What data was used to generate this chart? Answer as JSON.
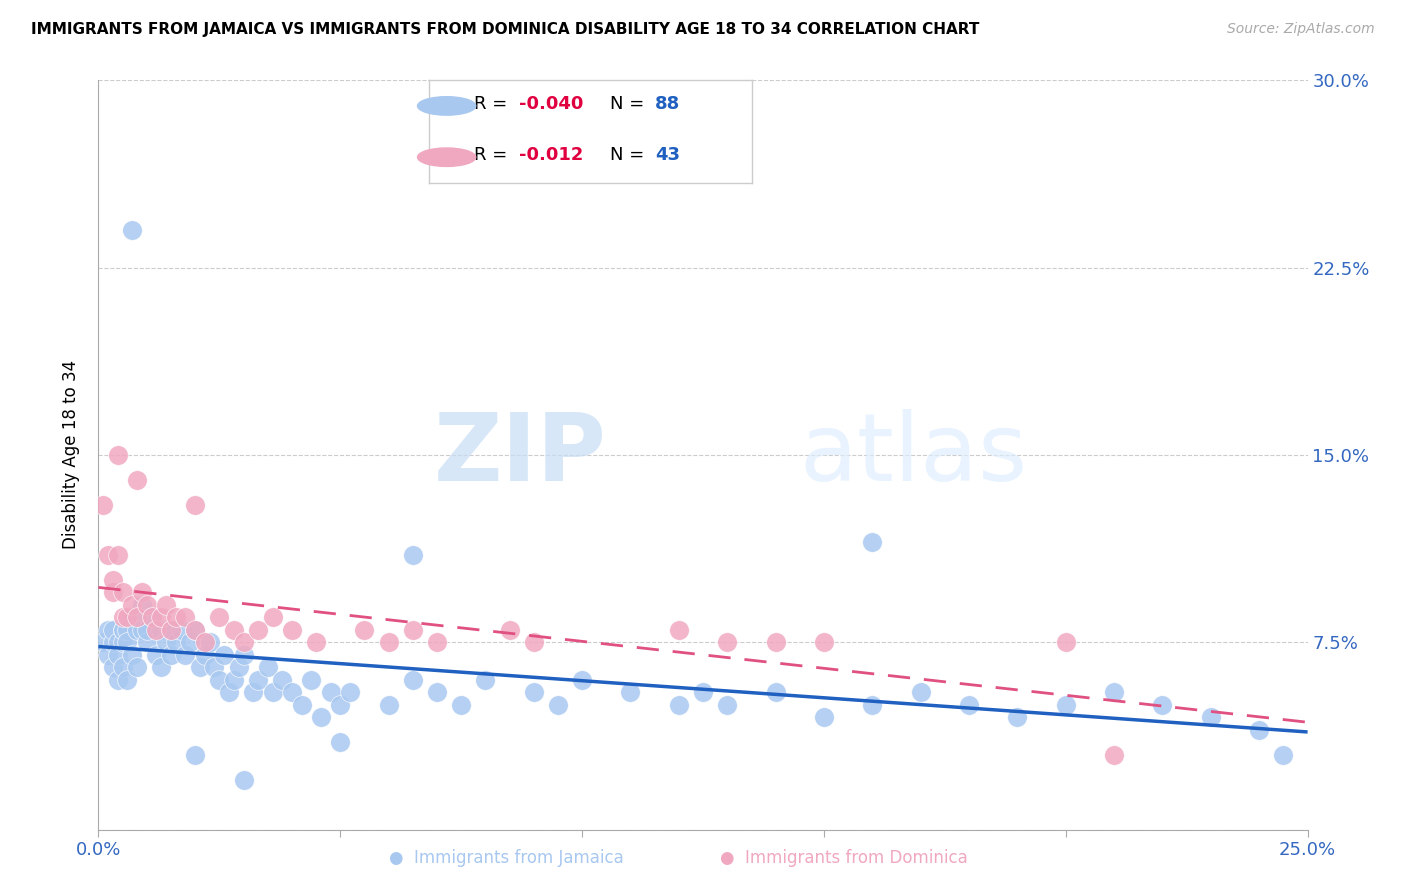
{
  "title": "IMMIGRANTS FROM JAMAICA VS IMMIGRANTS FROM DOMINICA DISABILITY AGE 18 TO 34 CORRELATION CHART",
  "source": "Source: ZipAtlas.com",
  "ylabel": "Disability Age 18 to 34",
  "xlim": [
    0.0,
    0.25
  ],
  "ylim": [
    0.0,
    0.3
  ],
  "ytick_vals": [
    0.0,
    0.075,
    0.15,
    0.225,
    0.3
  ],
  "ytick_labels_right": [
    "",
    "7.5%",
    "15.0%",
    "22.5%",
    "30.0%"
  ],
  "xtick_vals": [
    0.0,
    0.05,
    0.1,
    0.15,
    0.2,
    0.25
  ],
  "xtick_labels": [
    "0.0%",
    "",
    "",
    "",
    "",
    "25.0%"
  ],
  "jamaica_R": -0.04,
  "jamaica_N": 88,
  "dominica_R": -0.012,
  "dominica_N": 43,
  "jamaica_color": "#a8c8f0",
  "dominica_color": "#f0a8c0",
  "jamaica_line_color": "#2060c0",
  "dominica_line_color": "#e05080",
  "legend_R_color": "#e00040",
  "legend_N_color": "#2060c0",
  "watermark_zip": "ZIP",
  "watermark_atlas": "atlas",
  "jamaica_x": [
    0.001,
    0.002,
    0.002,
    0.003,
    0.003,
    0.003,
    0.004,
    0.004,
    0.004,
    0.005,
    0.005,
    0.005,
    0.005,
    0.006,
    0.006,
    0.006,
    0.007,
    0.007,
    0.008,
    0.008,
    0.009,
    0.009,
    0.01,
    0.01,
    0.011,
    0.012,
    0.013,
    0.013,
    0.014,
    0.015,
    0.015,
    0.016,
    0.017,
    0.018,
    0.019,
    0.02,
    0.021,
    0.022,
    0.023,
    0.024,
    0.025,
    0.026,
    0.027,
    0.028,
    0.029,
    0.03,
    0.032,
    0.033,
    0.035,
    0.036,
    0.038,
    0.04,
    0.042,
    0.044,
    0.046,
    0.048,
    0.05,
    0.052,
    0.06,
    0.065,
    0.07,
    0.075,
    0.08,
    0.09,
    0.095,
    0.1,
    0.11,
    0.12,
    0.125,
    0.13,
    0.14,
    0.15,
    0.16,
    0.17,
    0.18,
    0.19,
    0.2,
    0.21,
    0.22,
    0.23,
    0.24,
    0.245,
    0.007,
    0.02,
    0.03,
    0.05,
    0.065,
    0.16
  ],
  "jamaica_y": [
    0.075,
    0.08,
    0.07,
    0.075,
    0.08,
    0.065,
    0.075,
    0.06,
    0.07,
    0.08,
    0.065,
    0.075,
    0.08,
    0.06,
    0.08,
    0.075,
    0.085,
    0.07,
    0.08,
    0.065,
    0.09,
    0.08,
    0.075,
    0.08,
    0.085,
    0.07,
    0.08,
    0.065,
    0.075,
    0.08,
    0.07,
    0.075,
    0.08,
    0.07,
    0.075,
    0.08,
    0.065,
    0.07,
    0.075,
    0.065,
    0.06,
    0.07,
    0.055,
    0.06,
    0.065,
    0.07,
    0.055,
    0.06,
    0.065,
    0.055,
    0.06,
    0.055,
    0.05,
    0.06,
    0.045,
    0.055,
    0.05,
    0.055,
    0.05,
    0.06,
    0.055,
    0.05,
    0.06,
    0.055,
    0.05,
    0.06,
    0.055,
    0.05,
    0.055,
    0.05,
    0.055,
    0.045,
    0.05,
    0.055,
    0.05,
    0.045,
    0.05,
    0.055,
    0.05,
    0.045,
    0.04,
    0.03,
    0.24,
    0.03,
    0.02,
    0.035,
    0.11,
    0.115
  ],
  "dominica_x": [
    0.001,
    0.002,
    0.003,
    0.003,
    0.004,
    0.005,
    0.005,
    0.006,
    0.007,
    0.008,
    0.009,
    0.01,
    0.011,
    0.012,
    0.013,
    0.014,
    0.015,
    0.016,
    0.018,
    0.02,
    0.022,
    0.025,
    0.028,
    0.03,
    0.033,
    0.036,
    0.04,
    0.045,
    0.055,
    0.06,
    0.065,
    0.07,
    0.085,
    0.09,
    0.13,
    0.14,
    0.15,
    0.2,
    0.004,
    0.008,
    0.02,
    0.12,
    0.21
  ],
  "dominica_y": [
    0.13,
    0.11,
    0.095,
    0.1,
    0.11,
    0.085,
    0.095,
    0.085,
    0.09,
    0.085,
    0.095,
    0.09,
    0.085,
    0.08,
    0.085,
    0.09,
    0.08,
    0.085,
    0.085,
    0.08,
    0.075,
    0.085,
    0.08,
    0.075,
    0.08,
    0.085,
    0.08,
    0.075,
    0.08,
    0.075,
    0.08,
    0.075,
    0.08,
    0.075,
    0.075,
    0.075,
    0.075,
    0.075,
    0.15,
    0.14,
    0.13,
    0.08,
    0.03
  ]
}
